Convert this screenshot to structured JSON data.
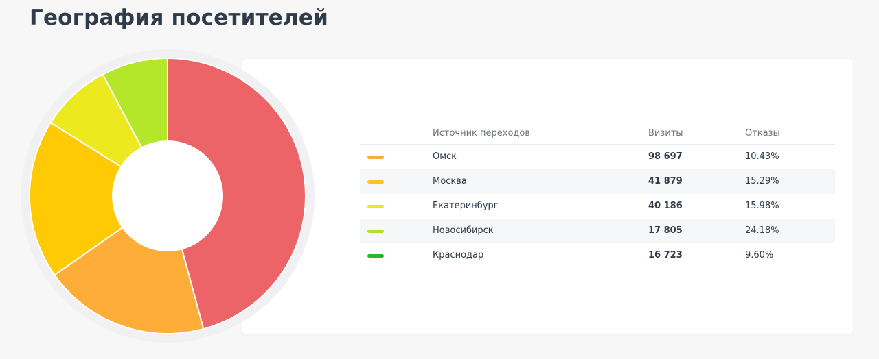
{
  "page": {
    "title": "География посетителей"
  },
  "table": {
    "headers": {
      "source": "Источник переходов",
      "visits": "Визиты",
      "bounces": "Отказы"
    },
    "rows": [
      {
        "city": "Омск",
        "visits": "98 697",
        "bounces": "10.43%",
        "color": "#f7ae3f"
      },
      {
        "city": "Москва",
        "visits": "41 879",
        "bounces": "15.29%",
        "color": "#f9c61f"
      },
      {
        "city": "Екатеринбург",
        "visits": "40 186",
        "bounces": "15.98%",
        "color": "#ece62c"
      },
      {
        "city": "Новосибирск",
        "visits": "17 805",
        "bounces": "24.18%",
        "color": "#b4e021"
      },
      {
        "city": "Краснодар",
        "visits": "16 723",
        "bounces": "9.60%",
        "color": "#2cb52c"
      }
    ]
  },
  "chart_data": {
    "type": "pie",
    "variant": "donut",
    "title": "",
    "slices": [
      {
        "label": "",
        "value": 45.9,
        "color": "#ec6467"
      },
      {
        "label": "",
        "value": 19.5,
        "color": "#ffad39"
      },
      {
        "label": "",
        "value": 18.7,
        "color": "#ffc903"
      },
      {
        "label": "",
        "value": 8.3,
        "color": "#ece91f"
      },
      {
        "label": "",
        "value": 7.8,
        "color": "#b4e629"
      }
    ],
    "legend": "none"
  }
}
